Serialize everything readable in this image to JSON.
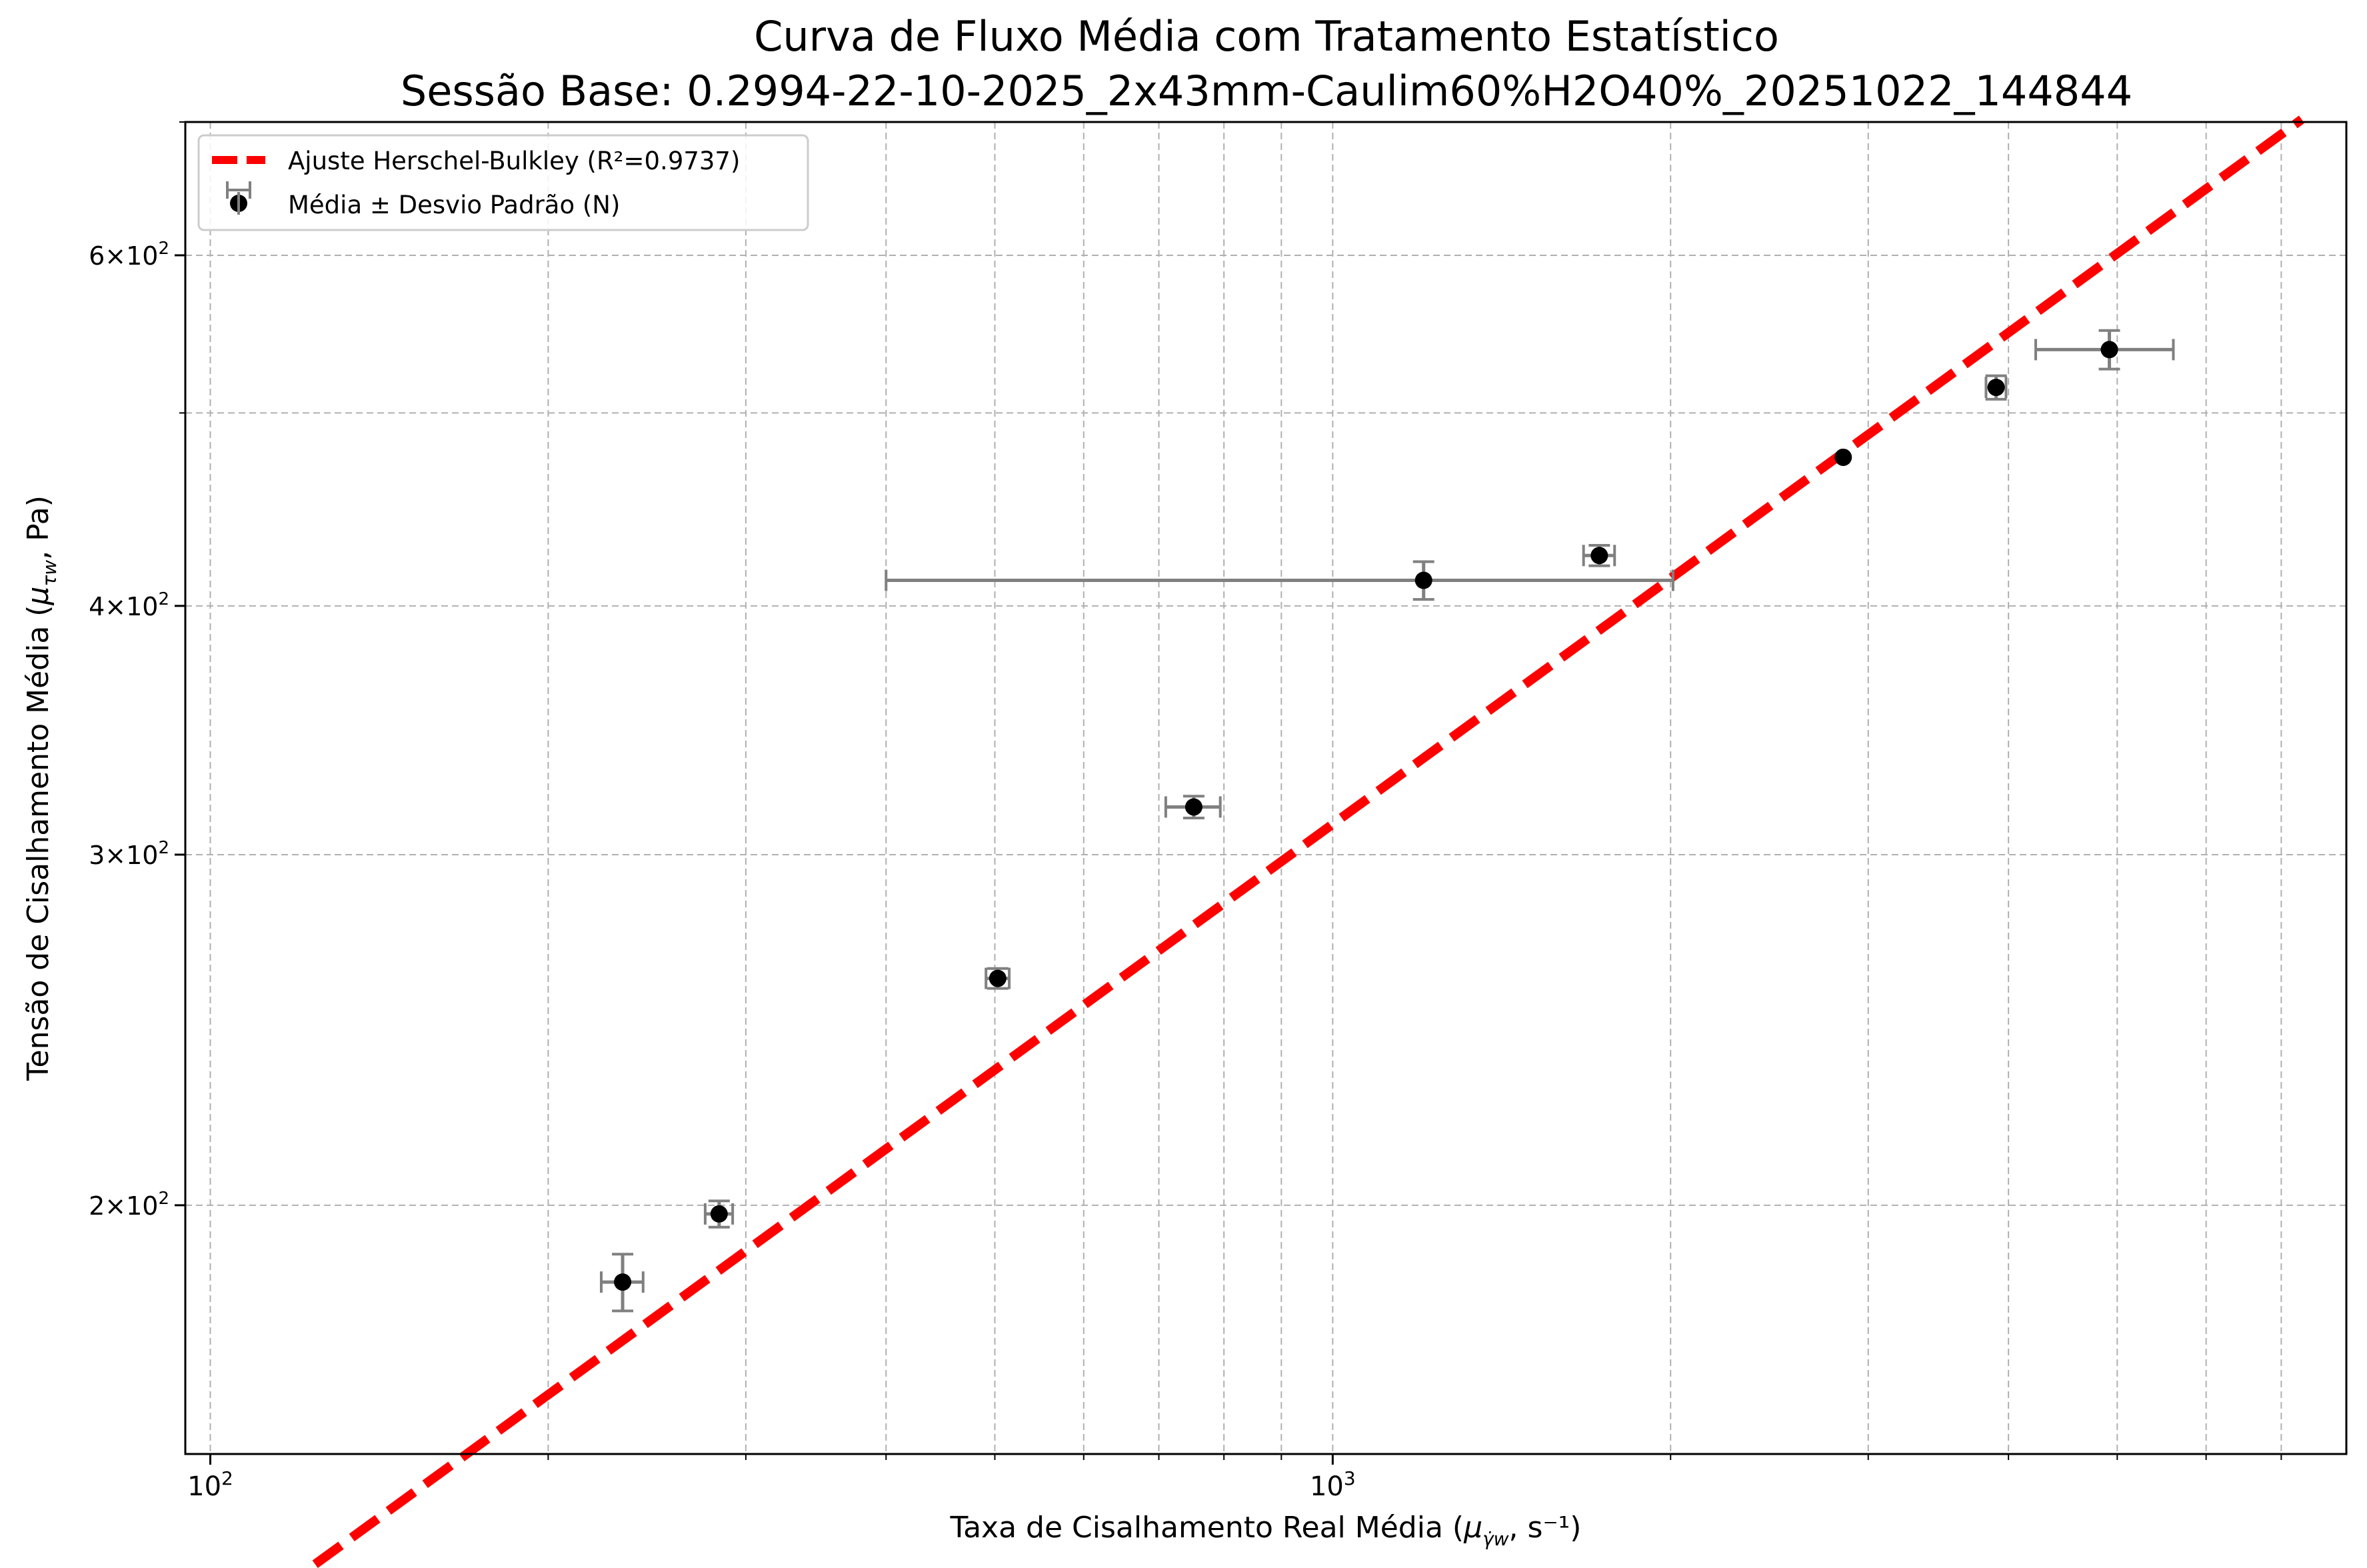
{
  "chart_data": {
    "type": "scatter",
    "title_line1": "Curva de Fluxo Média com Tratamento Estatístico",
    "title_line2": "Sessão Base: 0.2994-22-10-2025_2x43mm-Caulim60%H2O40%_20251022_144844",
    "xlabel_main": "Taxa de Cisalhamento Real Média (",
    "xlabel_mu": "μ",
    "xlabel_sub": "γ̇w",
    "xlabel_rest": ", s⁻¹)",
    "ylabel_main": "Tensão de Cisalhamento Média (",
    "ylabel_mu": "μ",
    "ylabel_sub": "τw",
    "ylabel_rest": ", Pa)",
    "xscale": "log",
    "yscale": "log",
    "xlim": [
      95,
      8000
    ],
    "ylim": [
      150,
      700
    ],
    "grid": true,
    "legend_position": "top-left",
    "x_ticks": [
      {
        "value": 100,
        "base": "10",
        "exp": "2"
      },
      {
        "value": 1000,
        "base": "10",
        "exp": "3"
      }
    ],
    "y_ticks": [
      {
        "value": 200,
        "mant": "2",
        "base": "10",
        "exp": "2"
      },
      {
        "value": 300,
        "mant": "3",
        "base": "10",
        "exp": "2"
      },
      {
        "value": 400,
        "mant": "4",
        "base": "10",
        "exp": "2"
      },
      {
        "value": 600,
        "mant": "6",
        "base": "10",
        "exp": "2"
      }
    ],
    "x_minor_ticks": [
      200,
      300,
      400,
      500,
      600,
      700,
      800,
      900,
      2000,
      3000,
      4000,
      5000,
      6000,
      7000
    ],
    "y_minor_ticks": [
      500
    ],
    "fit": {
      "label": "Ajuste Herschel-Bulkley (R²=0.9737)",
      "color": "#ff0000",
      "x_start": 115,
      "x_end": 7300,
      "k": 18.3,
      "n": 0.41
    },
    "points_label": "Média ± Desvio Padrão (N)",
    "points": [
      {
        "x": 233,
        "y": 183,
        "xerr": 10,
        "yerr": 6
      },
      {
        "x": 284,
        "y": 198,
        "xerr": 8,
        "yerr": 3
      },
      {
        "x": 503,
        "y": 260,
        "xerr": 12,
        "yerr": 3
      },
      {
        "x": 752,
        "y": 317,
        "xerr": 42,
        "yerr": 4
      },
      {
        "x": 1205,
        "y": 412,
        "xerr": 805,
        "yerr": 9
      },
      {
        "x": 1728,
        "y": 424,
        "xerr": 55,
        "yerr": 5
      },
      {
        "x": 2850,
        "y": 475,
        "xerr": 0,
        "yerr": 0
      },
      {
        "x": 3900,
        "y": 515,
        "xerr": 80,
        "yerr": 7
      },
      {
        "x": 4920,
        "y": 538,
        "xerr": 690,
        "yerr": 12
      }
    ],
    "colors": {
      "marker": "#000000",
      "errorbar": "#808080",
      "grid": "#b0b0b0"
    }
  }
}
